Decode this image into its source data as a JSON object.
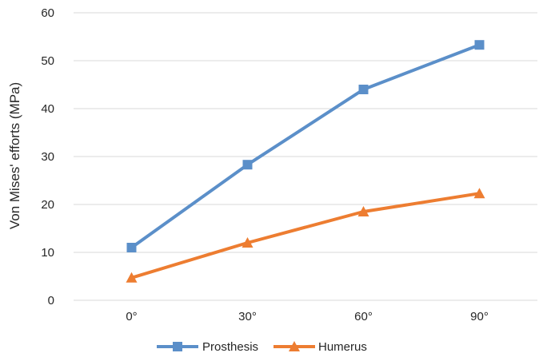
{
  "chart_data": {
    "type": "line",
    "categories": [
      "0°",
      "30°",
      "60°",
      "90°"
    ],
    "series": [
      {
        "name": "Prosthesis",
        "values": [
          11,
          28.3,
          44,
          53.3
        ],
        "color": "#5B8FC9",
        "marker": "square"
      },
      {
        "name": "Humerus",
        "values": [
          4.7,
          12,
          18.5,
          22.3
        ],
        "color": "#ED7D31",
        "marker": "triangle"
      }
    ],
    "ylabel": "Von Mises' efforts (MPa)",
    "xlabel": "",
    "ylim": [
      0,
      60
    ],
    "yticks": [
      0,
      10,
      20,
      30,
      40,
      50,
      60
    ],
    "grid": "horizontal",
    "legend_position": "bottom"
  }
}
